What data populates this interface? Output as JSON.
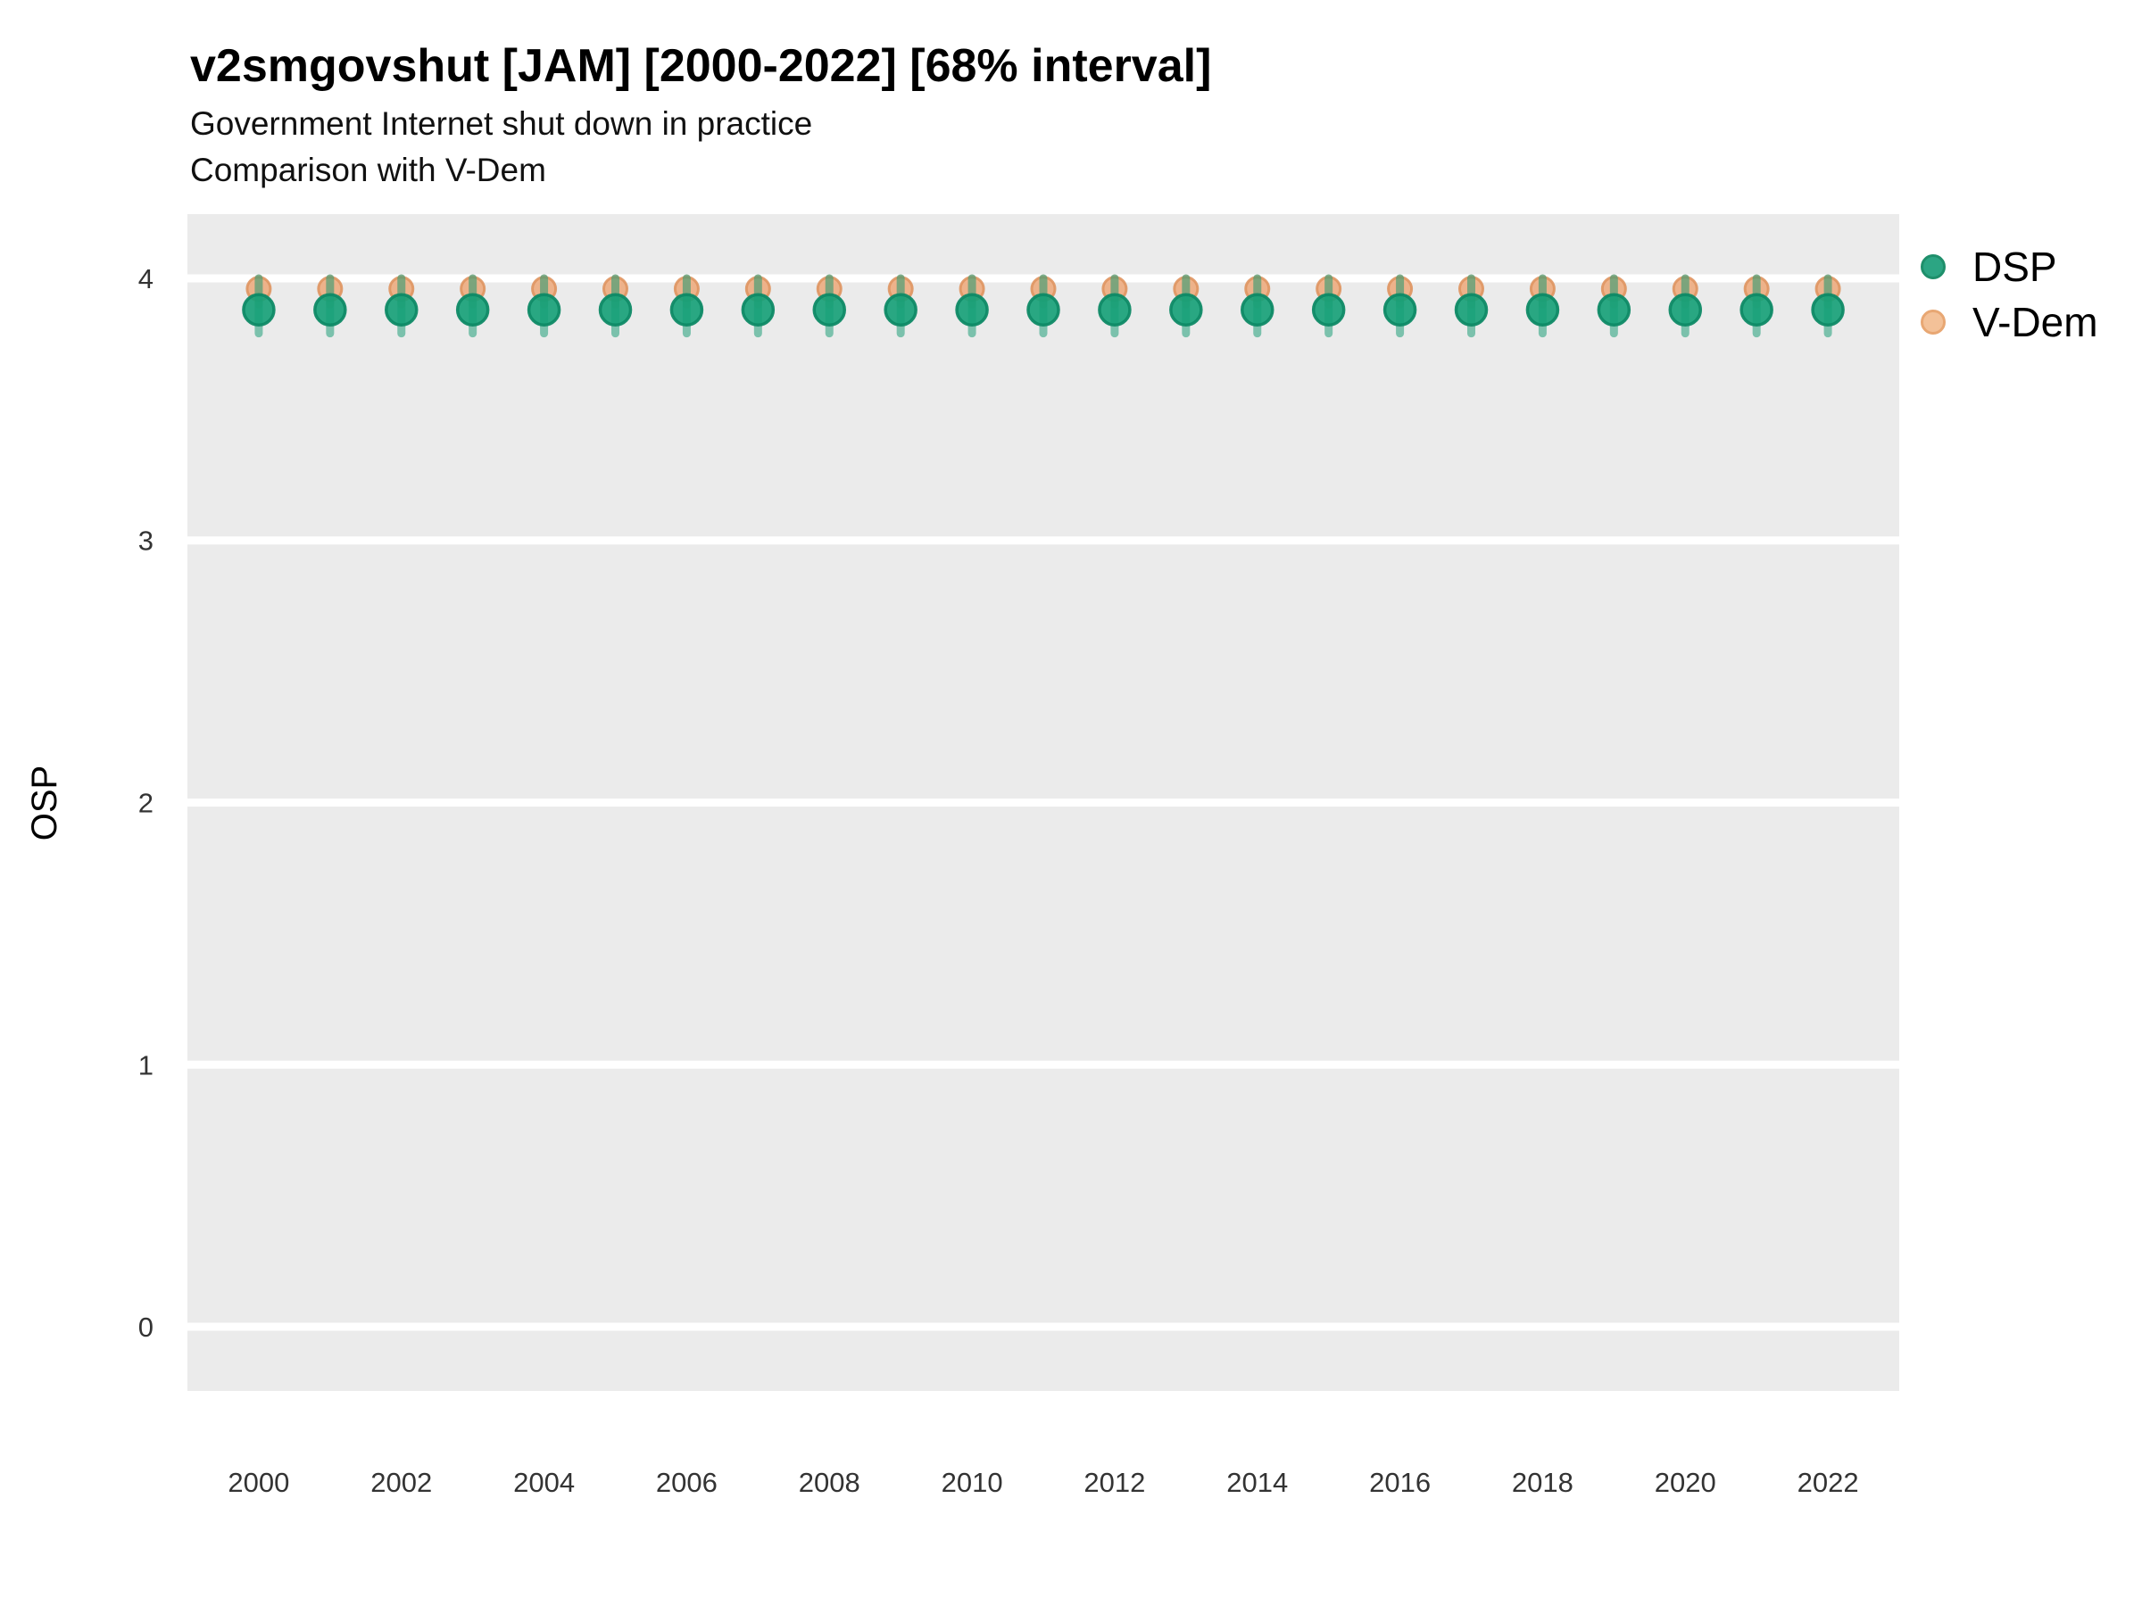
{
  "header": {
    "title": "v2smgovshut [JAM] [2000-2022] [68% interval]",
    "subtitle": "Government Internet shut down in practice",
    "subtitle2": "Comparison with V-Dem"
  },
  "legend": {
    "items": [
      {
        "label": "DSP",
        "fill": "#2CA583",
        "stroke": "#1F8F6B"
      },
      {
        "label": "V-Dem",
        "fill": "#F3C198",
        "stroke": "#E8A773"
      }
    ],
    "position": "right"
  },
  "colors": {
    "panel_background": "#EBEBEB",
    "gridline": "#FFFFFF",
    "axis_text": "#333333",
    "dsp_point_fill": "#14A077",
    "dsp_point_stroke": "#0F8A66",
    "dsp_interval": "rgba(31,158,120,0.55)",
    "vdem_point_fill": "#EDAA7C",
    "vdem_point_stroke": "#DF9560",
    "vdem_interval": "rgba(228,150,100,0.55)"
  },
  "chart_data": {
    "type": "scatter",
    "title": "v2smgovshut [JAM] [2000-2022] [68% interval]",
    "subtitle": "Government Internet shut down in practice / Comparison with V-Dem",
    "xlabel": "",
    "ylabel": "OSP",
    "x": [
      2000,
      2001,
      2002,
      2003,
      2004,
      2005,
      2006,
      2007,
      2008,
      2009,
      2010,
      2011,
      2012,
      2013,
      2014,
      2015,
      2016,
      2017,
      2018,
      2019,
      2020,
      2021,
      2022
    ],
    "series": [
      {
        "name": "DSP",
        "values": [
          3.88,
          3.88,
          3.88,
          3.88,
          3.88,
          3.88,
          3.88,
          3.88,
          3.88,
          3.88,
          3.88,
          3.88,
          3.88,
          3.88,
          3.88,
          3.88,
          3.88,
          3.88,
          3.88,
          3.88,
          3.88,
          3.88,
          3.88
        ],
        "lo": [
          3.79,
          3.79,
          3.79,
          3.79,
          3.79,
          3.79,
          3.79,
          3.79,
          3.79,
          3.79,
          3.79,
          3.79,
          3.79,
          3.79,
          3.79,
          3.79,
          3.79,
          3.79,
          3.79,
          3.79,
          3.79,
          3.79,
          3.79
        ],
        "hi": [
          4.0,
          4.0,
          4.0,
          4.0,
          4.0,
          4.0,
          4.0,
          4.0,
          4.0,
          4.0,
          4.0,
          4.0,
          4.0,
          4.0,
          4.0,
          4.0,
          4.0,
          4.0,
          4.0,
          4.0,
          4.0,
          4.0,
          4.0
        ]
      },
      {
        "name": "V-Dem",
        "values": [
          3.96,
          3.96,
          3.96,
          3.96,
          3.96,
          3.96,
          3.96,
          3.96,
          3.96,
          3.96,
          3.96,
          3.96,
          3.96,
          3.96,
          3.96,
          3.96,
          3.96,
          3.96,
          3.96,
          3.96,
          3.96,
          3.96,
          3.96
        ],
        "lo": [
          3.9,
          3.9,
          3.9,
          3.9,
          3.9,
          3.9,
          3.9,
          3.9,
          3.9,
          3.9,
          3.9,
          3.9,
          3.9,
          3.9,
          3.9,
          3.9,
          3.9,
          3.9,
          3.9,
          3.9,
          3.9,
          3.9,
          3.9
        ],
        "hi": [
          4.0,
          4.0,
          4.0,
          4.0,
          4.0,
          4.0,
          4.0,
          4.0,
          4.0,
          4.0,
          4.0,
          4.0,
          4.0,
          4.0,
          4.0,
          4.0,
          4.0,
          4.0,
          4.0,
          4.0,
          4.0,
          4.0,
          4.0
        ]
      }
    ],
    "interval_label": "68% interval",
    "xticks": [
      2000,
      2002,
      2004,
      2006,
      2008,
      2010,
      2012,
      2014,
      2016,
      2018,
      2020,
      2022
    ],
    "yticks": [
      0,
      1,
      2,
      3,
      4
    ],
    "xlim": [
      1999,
      2023
    ],
    "ylim": [
      -0.245,
      4.245
    ],
    "grid": "horizontal-major-only",
    "legend_position": "right"
  }
}
